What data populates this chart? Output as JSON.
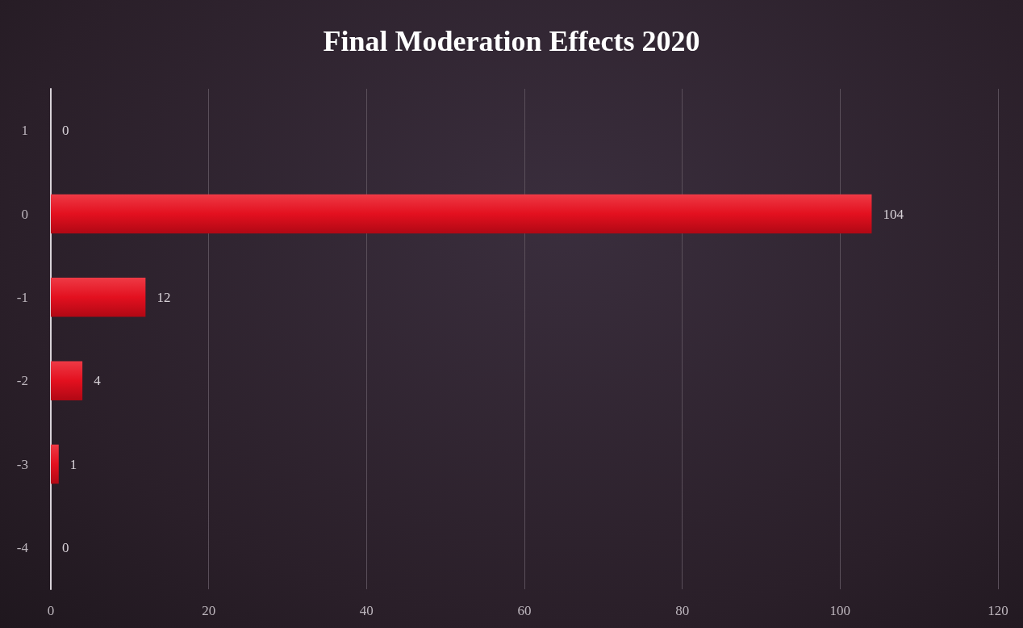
{
  "chart_data": {
    "type": "bar",
    "orientation": "horizontal",
    "title": "Final Moderation Effects 2020",
    "categories": [
      "1",
      "0",
      "-1",
      "-2",
      "-3",
      "-4"
    ],
    "values": [
      0,
      104,
      12,
      4,
      1,
      0
    ],
    "color": "#e3101f",
    "xlim": [
      0,
      120
    ],
    "xticks": [
      0,
      20,
      40,
      60,
      80,
      100,
      120
    ],
    "grid": "x",
    "data_labels": true
  }
}
